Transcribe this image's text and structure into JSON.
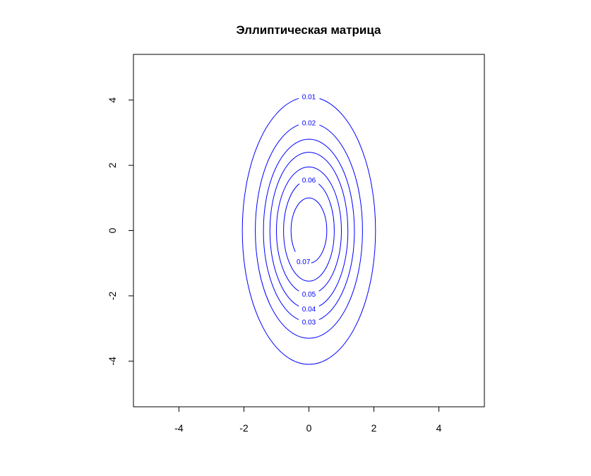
{
  "chart_data": {
    "type": "contour",
    "title": "Эллиптическая матрица",
    "xlabel": "",
    "ylabel": "",
    "xlim": [
      -5.4,
      5.4
    ],
    "ylim": [
      -5.4,
      5.4
    ],
    "x_ticks": [
      -4,
      -2,
      0,
      2,
      4
    ],
    "y_ticks": [
      -4,
      -2,
      0,
      2,
      4
    ],
    "x_tick_labels": [
      "-4",
      "-2",
      "0",
      "2",
      "4"
    ],
    "y_tick_labels": [
      "-4",
      "-2",
      "0",
      "2",
      "4"
    ],
    "grid": false,
    "line_color": "#0000ff",
    "center": [
      0,
      0
    ],
    "contours": [
      {
        "level": 0.01,
        "label": "0.01",
        "semi_axis_x": 2.05,
        "semi_axis_y": 4.1,
        "label_pos": "top"
      },
      {
        "level": 0.02,
        "label": "0.02",
        "semi_axis_x": 1.65,
        "semi_axis_y": 3.3,
        "label_pos": "top"
      },
      {
        "level": 0.03,
        "label": "0.03",
        "semi_axis_x": 1.4,
        "semi_axis_y": 2.8,
        "label_pos": "bottom"
      },
      {
        "level": 0.04,
        "label": "0.04",
        "semi_axis_x": 1.2,
        "semi_axis_y": 2.4,
        "label_pos": "bottom"
      },
      {
        "level": 0.05,
        "label": "0.05",
        "semi_axis_x": 1.0,
        "semi_axis_y": 1.95,
        "label_pos": "bottom"
      },
      {
        "level": 0.06,
        "label": "0.06",
        "semi_axis_x": 0.78,
        "semi_axis_y": 1.55,
        "label_pos": "top"
      },
      {
        "level": 0.07,
        "label": "0.07",
        "semi_axis_x": 0.55,
        "semi_axis_y": 1.0,
        "label_pos": "bottom-left"
      }
    ]
  }
}
